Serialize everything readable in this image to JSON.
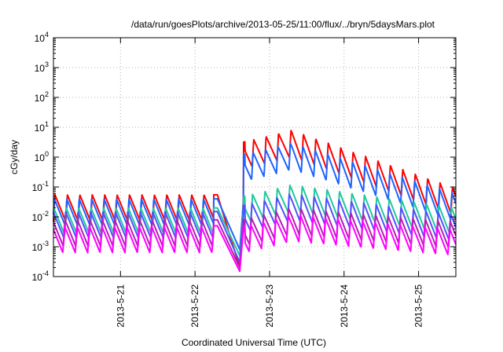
{
  "chart_data": {
    "type": "line",
    "title": "/data/run/goesPlots/archive/2013-05-25/11:00/flux/../bryn/5daysMars.plot",
    "xlabel": "Coordinated Universal Time (UTC)",
    "ylabel": "cGy/day",
    "yscale": "log",
    "ylim": [
      0.0001,
      10000
    ],
    "xlim": [
      20.1,
      25.5
    ],
    "grid": true,
    "y_ticks": [
      {
        "base": "10",
        "exp": "-4"
      },
      {
        "base": "10",
        "exp": "-3"
      },
      {
        "base": "10",
        "exp": "-2"
      },
      {
        "base": "10",
        "exp": "-1"
      },
      {
        "base": "10",
        "exp": "0"
      },
      {
        "base": "10",
        "exp": "1"
      },
      {
        "base": "10",
        "exp": "2"
      },
      {
        "base": "10",
        "exp": "3"
      },
      {
        "base": "10",
        "exp": "4"
      }
    ],
    "x_ticks": [
      "2013-5-21",
      "2013-5-22",
      "2013-5-23",
      "2013-5-24",
      "2013-5-25"
    ],
    "x_tick_values": [
      21,
      22,
      23,
      24,
      25
    ],
    "event_day": 22.65,
    "series": [
      {
        "color": "#ff0000",
        "pre": 0.055,
        "dip": 0.0002,
        "peak": 8.0,
        "late": 0.09
      },
      {
        "color": "#1e64ff",
        "pre": 0.04,
        "dip": 0.0008,
        "peak": 3.0,
        "late": 0.06
      },
      {
        "color": "#1ec8a0",
        "pre": 0.02,
        "dip": 0.0005,
        "peak": 0.12,
        "late": 0.02
      },
      {
        "color": "#5050ff",
        "pre": 0.015,
        "dip": 0.0003,
        "peak": 0.06,
        "late": 0.012
      },
      {
        "color": "#b41eb4",
        "pre": 0.008,
        "dip": 0.0002,
        "peak": 0.02,
        "late": 0.007
      },
      {
        "color": "#ff00ff",
        "pre": 0.005,
        "dip": 0.00015,
        "peak": 0.012,
        "late": 0.004
      }
    ]
  }
}
